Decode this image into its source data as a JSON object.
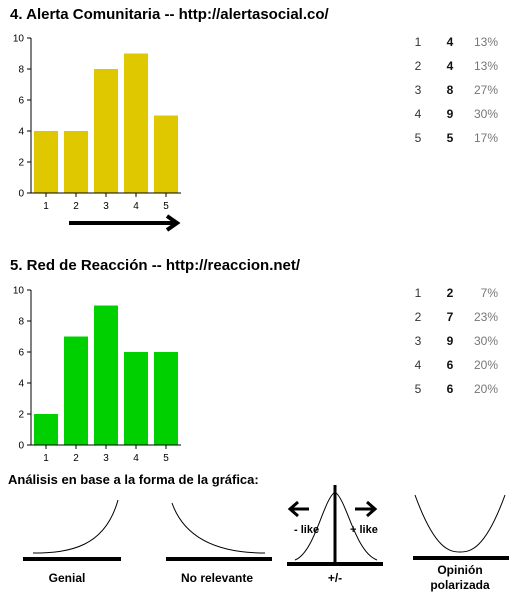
{
  "chart_data": [
    {
      "type": "bar",
      "title": "4. Alerta Comunitaria -- http://alertasocial.co/",
      "categories": [
        "1",
        "2",
        "3",
        "4",
        "5"
      ],
      "values": [
        4,
        4,
        8,
        9,
        5
      ],
      "percentages": [
        "13%",
        "13%",
        "27%",
        "30%",
        "17%"
      ],
      "ylim": [
        0,
        10
      ],
      "yticks": [
        "0",
        "2",
        "4",
        "6",
        "8",
        "10"
      ],
      "color": "#e0c800",
      "grid": false,
      "annotation": "arrow-right-icon"
    },
    {
      "type": "bar",
      "title": "5. Red de Reacción -- http://reaccion.net/",
      "categories": [
        "1",
        "2",
        "3",
        "4",
        "5"
      ],
      "values": [
        2,
        7,
        9,
        6,
        6
      ],
      "percentages": [
        "7%",
        "23%",
        "30%",
        "20%",
        "20%"
      ],
      "ylim": [
        0,
        10
      ],
      "yticks": [
        "0",
        "2",
        "4",
        "6",
        "8",
        "10"
      ],
      "color": "#00d000",
      "grid": false
    }
  ],
  "analysis": {
    "title": "Análisis en base a la forma de la gráfica:",
    "shapes": [
      {
        "label": "Genial",
        "icon": "rising-curve-icon"
      },
      {
        "label": "No relevante",
        "icon": "falling-curve-icon"
      },
      {
        "label": "+/-",
        "icon": "bell-curve-icon",
        "left_label": "- like",
        "right_label": "+ like"
      },
      {
        "label_line1": "Opinión",
        "label_line2": "polarizada",
        "icon": "u-curve-icon"
      }
    ]
  }
}
